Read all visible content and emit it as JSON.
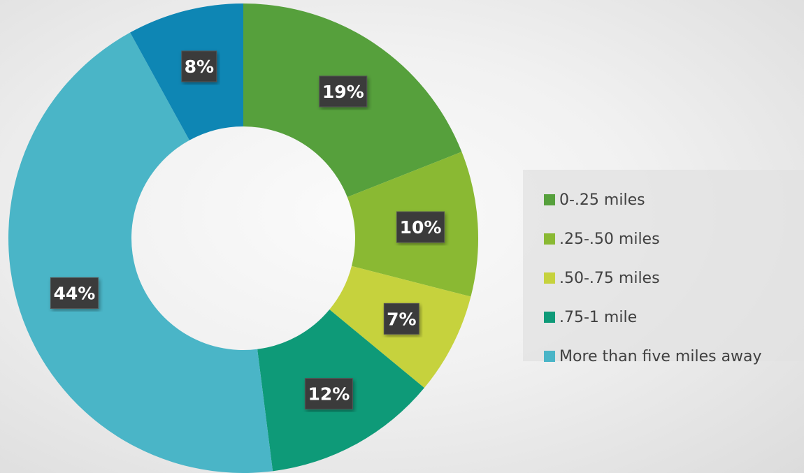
{
  "chart_data": {
    "type": "pie",
    "variant": "doughnut",
    "categories": [
      "0-.25 miles",
      ".25-.50 miles",
      ".50-.75 miles",
      ".75-1 mile",
      "More than five miles away",
      ""
    ],
    "values": [
      19,
      10,
      7,
      12,
      44,
      8
    ],
    "labels": [
      "19%",
      "10%",
      "7%",
      "12%",
      "44%",
      "8%"
    ],
    "colors": [
      "#56a03c",
      "#8ab933",
      "#c6d23d",
      "#0e9a78",
      "#4ab5c7",
      "#0e86b4"
    ],
    "legend_position": "right"
  }
}
